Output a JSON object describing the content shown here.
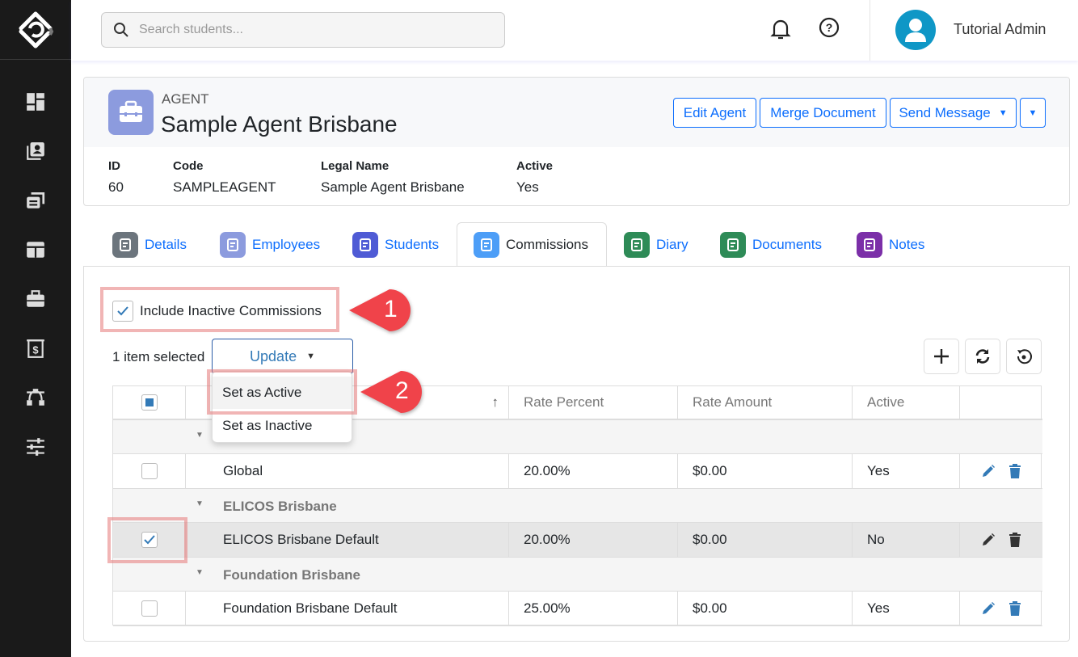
{
  "sidebar": {
    "items": [
      {
        "icon": "dashboard-icon"
      },
      {
        "icon": "students-icon"
      },
      {
        "icon": "courses-icon"
      },
      {
        "icon": "layout-icon"
      },
      {
        "icon": "agents-briefcase-icon"
      },
      {
        "icon": "finance-icon"
      },
      {
        "icon": "workflow-icon"
      },
      {
        "icon": "settings-sliders-icon"
      }
    ]
  },
  "topbar": {
    "search_placeholder": "Search students...",
    "user_name": "Tutorial Admin"
  },
  "agent": {
    "type_label": "AGENT",
    "name": "Sample Agent Brisbane",
    "buttons": {
      "edit": "Edit Agent",
      "merge": "Merge Document",
      "send": "Send Message"
    },
    "fields": [
      {
        "label": "ID",
        "value": "60"
      },
      {
        "label": "Code",
        "value": "SAMPLEAGENT"
      },
      {
        "label": "Legal Name",
        "value": "Sample Agent Brisbane"
      },
      {
        "label": "Active",
        "value": "Yes"
      }
    ]
  },
  "tabs": [
    {
      "label": "Details",
      "color": "#6c757d"
    },
    {
      "label": "Employees",
      "color": "#8c9bde"
    },
    {
      "label": "Students",
      "color": "#4f5bd5"
    },
    {
      "label": "Commissions",
      "color": "#4d9ef7",
      "active": true
    },
    {
      "label": "Diary",
      "color": "#2e8b57"
    },
    {
      "label": "Documents",
      "color": "#2e8b57"
    },
    {
      "label": "Notes",
      "color": "#7b2fa8"
    }
  ],
  "commissions": {
    "include_inactive_label": "Include Inactive Commissions",
    "include_inactive_checked": true,
    "selected_text": "1 item selected",
    "update_label": "Update",
    "update_menu": [
      "Set as Active",
      "Set as Inactive"
    ],
    "columns": [
      "Rate Percent",
      "Rate Amount",
      "Active"
    ],
    "groups": [
      {
        "name": "",
        "rows": [
          {
            "name": "Global",
            "rate_percent": "20.00%",
            "rate_amount": "$0.00",
            "active": "Yes",
            "selected": false
          }
        ]
      },
      {
        "name": "ELICOS Brisbane",
        "rows": [
          {
            "name": "ELICOS Brisbane Default",
            "rate_percent": "20.00%",
            "rate_amount": "$0.00",
            "active": "No",
            "selected": true
          }
        ]
      },
      {
        "name": "Foundation Brisbane",
        "rows": [
          {
            "name": "Foundation Brisbane Default",
            "rate_percent": "25.00%",
            "rate_amount": "$0.00",
            "active": "Yes",
            "selected": false
          }
        ]
      }
    ]
  },
  "callouts": [
    "1",
    "2"
  ],
  "colors": {
    "primary": "#0d6efd",
    "callout": "#f0434a",
    "sidebar": "#1a1a1a",
    "avatar": "#0f97c6",
    "action_icon": "#337ab7"
  }
}
